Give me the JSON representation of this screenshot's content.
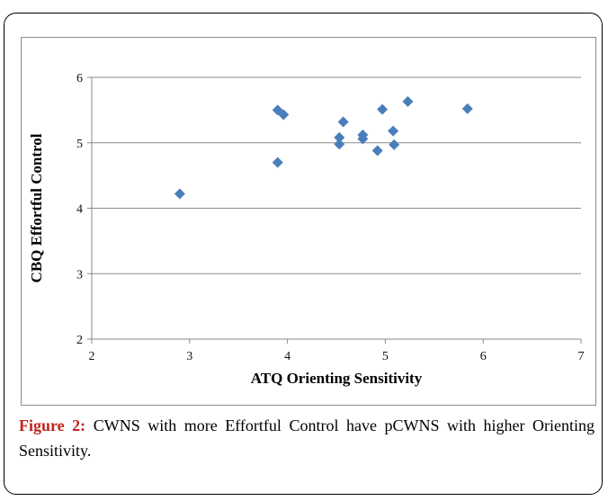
{
  "caption": {
    "label": "Figure 2:",
    "text": "CWNS with more Effortful Control have pCWNS with higher Orienting Sensitivity."
  },
  "chart_data": {
    "type": "scatter",
    "xlabel": "ATQ Orienting Sensitivity",
    "ylabel": "CBQ Effortful Control",
    "xlim": [
      2,
      7
    ],
    "ylim": [
      2,
      6
    ],
    "xticks": [
      "2",
      "3",
      "4",
      "5",
      "6",
      "7"
    ],
    "yticks": [
      "2",
      "3",
      "4",
      "5",
      "6"
    ],
    "grid": "horizontal",
    "marker": "diamond",
    "color": "#4a7ebb",
    "points": [
      {
        "x": 2.9,
        "y": 4.22
      },
      {
        "x": 3.9,
        "y": 5.5
      },
      {
        "x": 3.96,
        "y": 5.43
      },
      {
        "x": 3.9,
        "y": 4.7
      },
      {
        "x": 4.53,
        "y": 5.08
      },
      {
        "x": 4.53,
        "y": 4.98
      },
      {
        "x": 4.57,
        "y": 5.32
      },
      {
        "x": 4.77,
        "y": 5.12
      },
      {
        "x": 4.77,
        "y": 5.06
      },
      {
        "x": 4.92,
        "y": 4.88
      },
      {
        "x": 4.97,
        "y": 5.51
      },
      {
        "x": 5.08,
        "y": 5.18
      },
      {
        "x": 5.09,
        "y": 4.97
      },
      {
        "x": 5.23,
        "y": 5.63
      },
      {
        "x": 5.84,
        "y": 5.52
      }
    ]
  }
}
